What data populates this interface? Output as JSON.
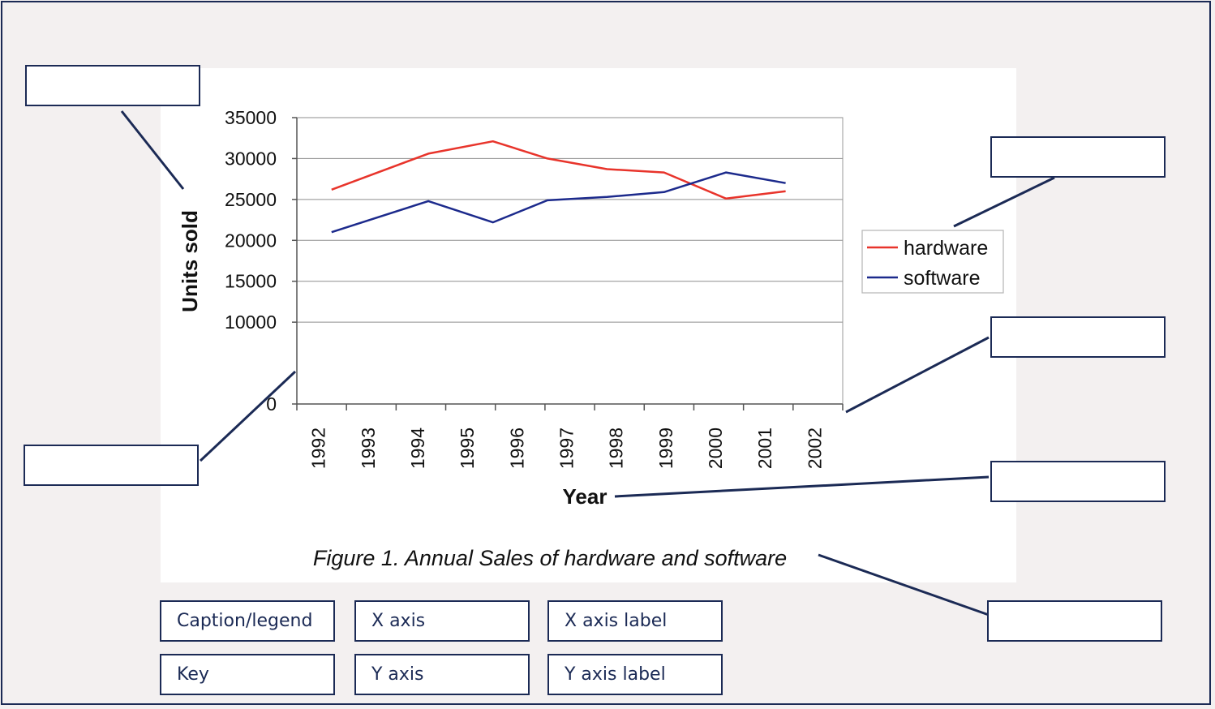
{
  "chart_data": {
    "type": "line",
    "title": "Figure 1. Annual Sales of hardware and software",
    "xlabel": "Year",
    "ylabel": "Units sold",
    "categories": [
      "1992",
      "1993",
      "1994",
      "1995",
      "1996",
      "1997",
      "1998",
      "1999",
      "2000",
      "2001",
      "2002"
    ],
    "ylim": [
      0,
      35000
    ],
    "yticks": [
      "0",
      "10000",
      "15000",
      "20000",
      "25000",
      "30000",
      "35000"
    ],
    "grid": true,
    "legend_position": "right",
    "series": [
      {
        "name": "hardware",
        "color": "#e8342b",
        "points": [
          [
            1992.35,
            26200
          ],
          [
            1994.3,
            30600
          ],
          [
            1995.6,
            32100
          ],
          [
            1996.7,
            30000
          ],
          [
            1997.9,
            28700
          ],
          [
            1999.05,
            28300
          ],
          [
            2000.3,
            25100
          ],
          [
            2001.5,
            26000
          ]
        ]
      },
      {
        "name": "software",
        "color": "#1c2a8c",
        "points": [
          [
            1992.35,
            21000
          ],
          [
            1994.3,
            24800
          ],
          [
            1995.6,
            22200
          ],
          [
            1996.7,
            24900
          ],
          [
            1997.9,
            25300
          ],
          [
            1999.05,
            25900
          ],
          [
            2000.3,
            28300
          ],
          [
            2001.5,
            27000
          ]
        ]
      }
    ]
  },
  "word_bank": {
    "caption_legend": "Caption/legend",
    "x_axis": "X axis",
    "x_axis_label": "X axis label",
    "key": "Key",
    "y_axis": "Y axis",
    "y_axis_label": "Y axis label"
  },
  "colors": {
    "ink": "#1b2a55",
    "hardware": "#e8342b",
    "software": "#1c2a8c"
  }
}
